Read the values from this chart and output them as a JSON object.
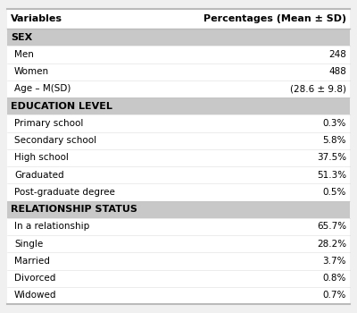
{
  "col_headers": [
    "Variables",
    "Percentages (Mean ± SD)"
  ],
  "rows": [
    {
      "label": "SEX",
      "value": "",
      "is_header": true
    },
    {
      "label": "Men",
      "value": "248",
      "is_header": false
    },
    {
      "label": "Women",
      "value": "488",
      "is_header": false
    },
    {
      "label": "Age – M(SD)",
      "value": "(28.6 ± 9.8)",
      "is_header": false
    },
    {
      "label": "EDUCATION LEVEL",
      "value": "",
      "is_header": true
    },
    {
      "label": "Primary school",
      "value": "0.3%",
      "is_header": false
    },
    {
      "label": "Secondary school",
      "value": "5.8%",
      "is_header": false
    },
    {
      "label": "High school",
      "value": "37.5%",
      "is_header": false
    },
    {
      "label": "Graduated",
      "value": "51.3%",
      "is_header": false
    },
    {
      "label": "Post-graduate degree",
      "value": "0.5%",
      "is_header": false
    },
    {
      "label": "RELATIONSHIP STATUS",
      "value": "",
      "is_header": true
    },
    {
      "label": "In a relationship",
      "value": "65.7%",
      "is_header": false
    },
    {
      "label": "Single",
      "value": "28.2%",
      "is_header": false
    },
    {
      "label": "Married",
      "value": "3.7%",
      "is_header": false
    },
    {
      "label": "Divorced",
      "value": "0.8%",
      "is_header": false
    },
    {
      "label": "Widowed",
      "value": "0.7%",
      "is_header": false
    }
  ],
  "section_bg": "#c8c8c8",
  "white_bg": "#ffffff",
  "fig_bg": "#f0f0f0",
  "border_color": "#bbbbbb",
  "header_text_color": "#000000",
  "row_text_color": "#000000",
  "col_header_fontsize": 8.0,
  "row_fontsize": 7.5,
  "section_fontsize": 8.0
}
